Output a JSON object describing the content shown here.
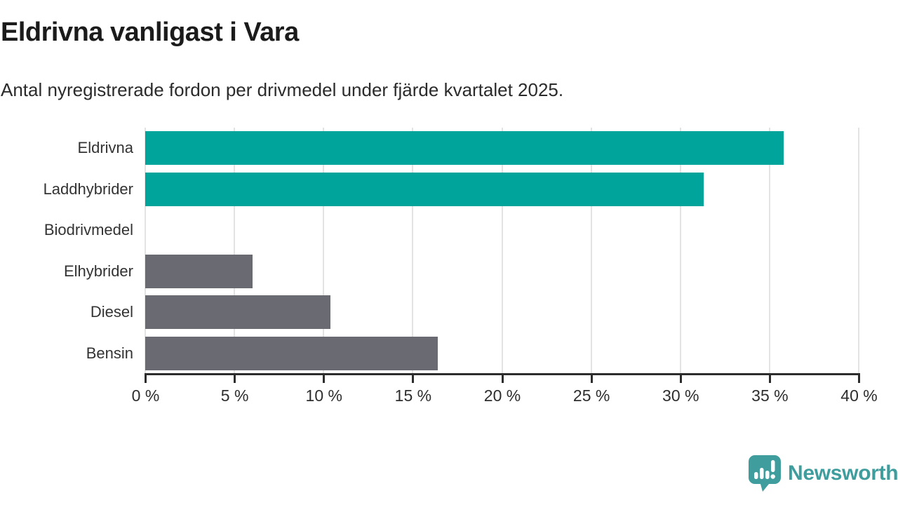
{
  "header": {
    "title": "Eldrivna vanligast i Vara",
    "subtitle": "Antal nyregistrerade fordon per drivmedel under fjärde kvartalet 2025."
  },
  "chart_data": {
    "type": "bar",
    "orientation": "horizontal",
    "title": "Eldrivna vanligast i Vara",
    "subtitle": "Antal nyregistrerade fordon per drivmedel under fjärde kvartalet 2025.",
    "categories": [
      "Eldrivna",
      "Laddhybrider",
      "Biodrivmedel",
      "Elhybrider",
      "Diesel",
      "Bensin"
    ],
    "values": [
      35.8,
      31.3,
      0,
      6.0,
      10.4,
      16.4
    ],
    "unit": "%",
    "bar_colors": [
      "#00a49a",
      "#00a49a",
      "#6a6a72",
      "#6a6a72",
      "#6a6a72",
      "#6a6a72"
    ],
    "highlight_color": "#00a49a",
    "default_color": "#6a6a72",
    "xlabel": "",
    "ylabel": "",
    "xlim": [
      0,
      40
    ],
    "x_tick_step": 5,
    "x_tick_labels": [
      "0 %",
      "5 %",
      "10 %",
      "15 %",
      "20 %",
      "25 %",
      "30 %",
      "35 %",
      "40 %"
    ],
    "grid": true,
    "gridline_color": "#e3e3e3",
    "axis_color": "#2d2d2d",
    "legend": false
  },
  "branding": {
    "name": "Newsworthy",
    "color": "#3f9d9d",
    "icon": "bar-chart-speech-bubble-icon"
  }
}
